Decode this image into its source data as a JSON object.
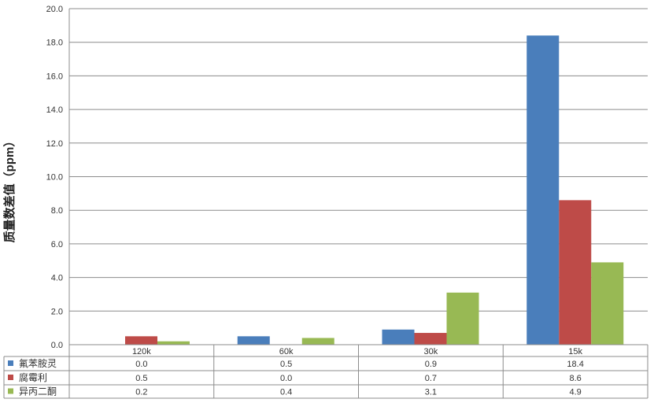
{
  "chart_data": {
    "type": "bar",
    "title": "",
    "xlabel": "",
    "ylabel": "质量数差值（ppm）",
    "ylim": [
      0,
      20
    ],
    "yticks": [
      "0.0",
      "2.0",
      "4.0",
      "6.0",
      "8.0",
      "10.0",
      "12.0",
      "14.0",
      "16.0",
      "18.0",
      "20.0"
    ],
    "grid": true,
    "legend": "data-table",
    "categories": [
      "120k",
      "60k",
      "30k",
      "15k"
    ],
    "series": [
      {
        "name": "氟苯胺灵",
        "color": "#4a7ebb",
        "values": [
          0.0,
          0.5,
          0.9,
          18.4
        ],
        "labels": [
          "0.0",
          "0.5",
          "0.9",
          "18.4"
        ]
      },
      {
        "name": "腐霉利",
        "color": "#be4b48",
        "values": [
          0.5,
          0.0,
          0.7,
          8.6
        ],
        "labels": [
          "0.5",
          "0.0",
          "0.7",
          "8.6"
        ]
      },
      {
        "name": "异丙二酮",
        "color": "#98b954",
        "values": [
          0.2,
          0.4,
          3.1,
          4.9
        ],
        "labels": [
          "0.2",
          "0.4",
          "3.1",
          "4.9"
        ]
      }
    ]
  }
}
